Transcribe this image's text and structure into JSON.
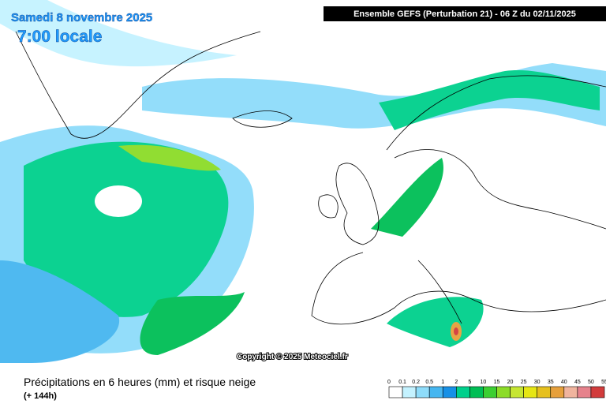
{
  "header": {
    "date": "Samedi 8 novembre 2025",
    "time": "7:00 locale",
    "run": "Ensemble GEFS  (Perturbation 21)  -  06 Z du 02/11/2025"
  },
  "map": {
    "copyright": "Copyright © 2025 Meteociel.fr"
  },
  "footer": {
    "title": "Précipitations en 6 heures (mm) et risque neige",
    "lead": "(+ 144h)"
  },
  "legend": {
    "labels": [
      "0",
      "0.1",
      "0.2",
      "0.5",
      "1",
      "2",
      "5",
      "10",
      "15",
      "20",
      "25",
      "30",
      "35",
      "40",
      "45",
      "50",
      "55"
    ],
    "colors": [
      "#ffffff",
      "#c4f2ff",
      "#8edcfa",
      "#46b6f0",
      "#1690e6",
      "#00d08c",
      "#00be55",
      "#3ccf32",
      "#8cdc28",
      "#c6e632",
      "#e6e614",
      "#e6c01e",
      "#e6a03c",
      "#f0b49e",
      "#e6828c",
      "#d23c3c"
    ]
  }
}
